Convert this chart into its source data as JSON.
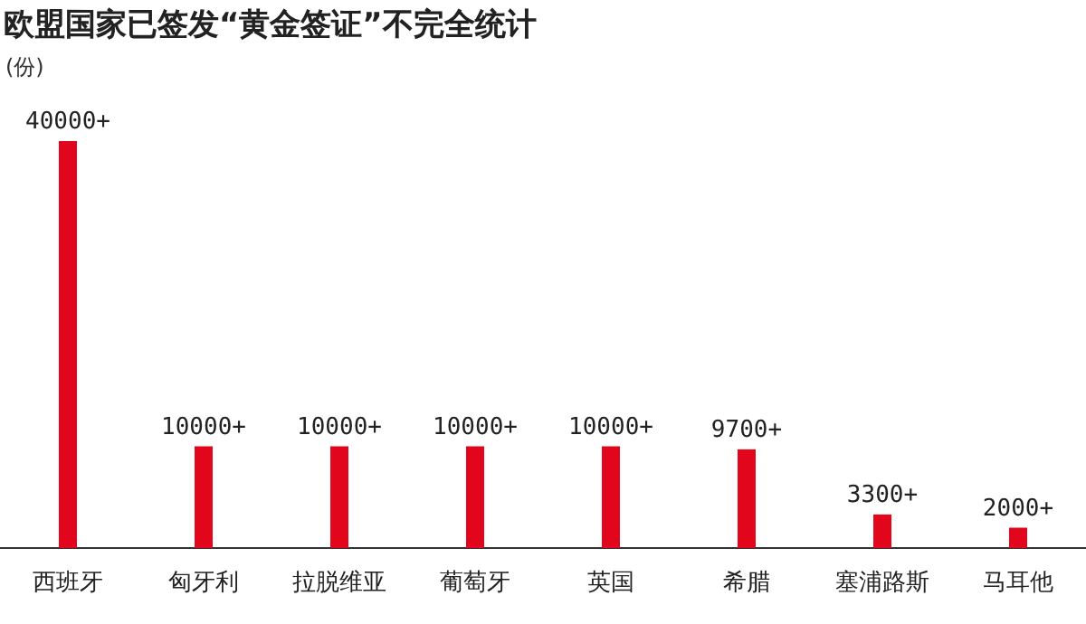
{
  "chart_data": {
    "type": "bar",
    "title": "欧盟国家已签发“黄金签证”不完全统计",
    "ylabel": "(份)",
    "categories": [
      "西班牙",
      "匈牙利",
      "拉脱维亚",
      "葡萄牙",
      "英国",
      "希腊",
      "塞浦路斯",
      "马耳他"
    ],
    "values": [
      40000,
      10000,
      10000,
      10000,
      10000,
      9700,
      3300,
      2000
    ],
    "value_labels": [
      "40000+",
      "10000+",
      "10000+",
      "10000+",
      "10000+",
      "9700+",
      "3300+",
      "2000+"
    ],
    "color": "#e1061b"
  }
}
